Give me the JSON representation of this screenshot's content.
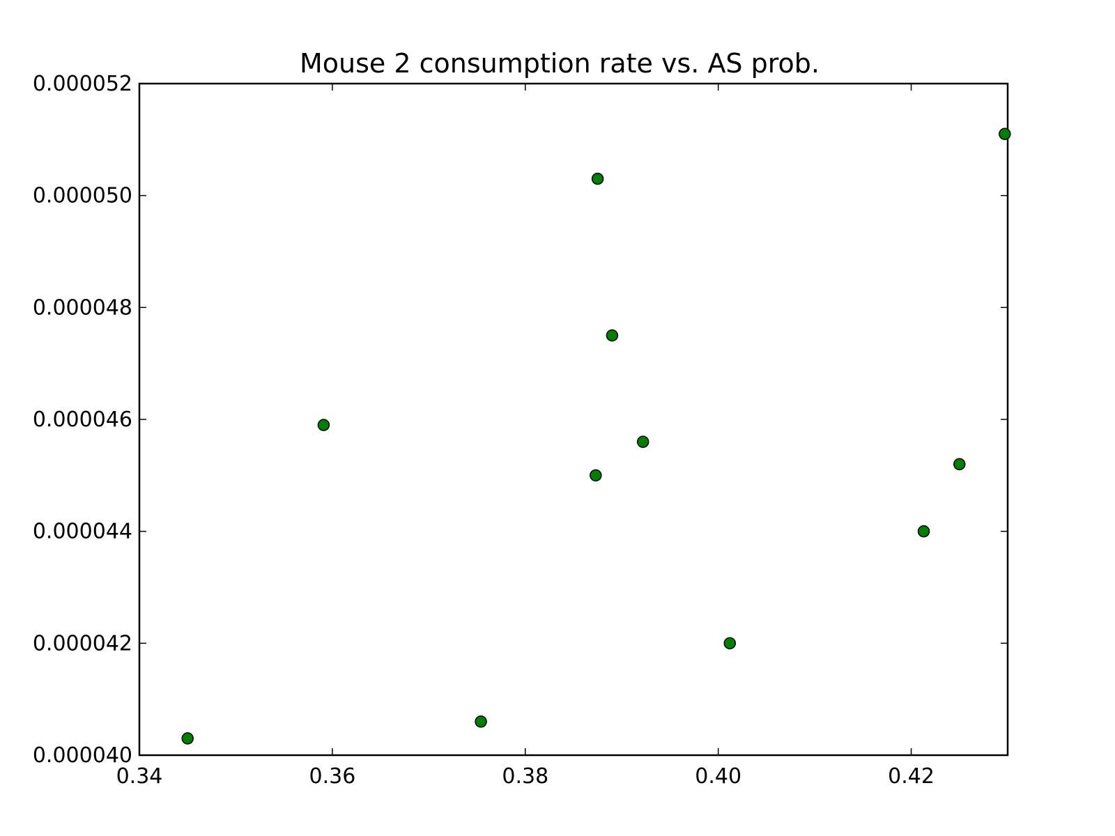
{
  "chart_data": {
    "type": "scatter",
    "title": "Mouse 2 consumption rate vs. AS prob.",
    "xlabel": "",
    "ylabel": "",
    "xlim": [
      0.34,
      0.43
    ],
    "ylim": [
      4e-05,
      5.2e-05
    ],
    "x_ticks": [
      0.34,
      0.36,
      0.38,
      0.4,
      0.42
    ],
    "x_tick_labels": [
      "0.34",
      "0.36",
      "0.38",
      "0.40",
      "0.42"
    ],
    "y_ticks": [
      4e-05,
      4.2e-05,
      4.4e-05,
      4.6e-05,
      4.8e-05,
      5e-05,
      5.2e-05
    ],
    "y_tick_labels": [
      "0.000040",
      "0.000042",
      "0.000044",
      "0.000046",
      "0.000048",
      "0.000050",
      "0.000052"
    ],
    "grid": false,
    "marker_color": "#008000",
    "marker_edge_color": "#000000",
    "points": [
      {
        "x": 0.345,
        "y": 4.03e-05
      },
      {
        "x": 0.3591,
        "y": 4.59e-05
      },
      {
        "x": 0.3754,
        "y": 4.06e-05
      },
      {
        "x": 0.3873,
        "y": 4.5e-05
      },
      {
        "x": 0.3875,
        "y": 5.03e-05
      },
      {
        "x": 0.389,
        "y": 4.75e-05
      },
      {
        "x": 0.3922,
        "y": 4.56e-05
      },
      {
        "x": 0.4012,
        "y": 4.2e-05
      },
      {
        "x": 0.4213,
        "y": 4.4e-05
      },
      {
        "x": 0.425,
        "y": 4.52e-05
      },
      {
        "x": 0.4297,
        "y": 5.11e-05
      }
    ]
  }
}
